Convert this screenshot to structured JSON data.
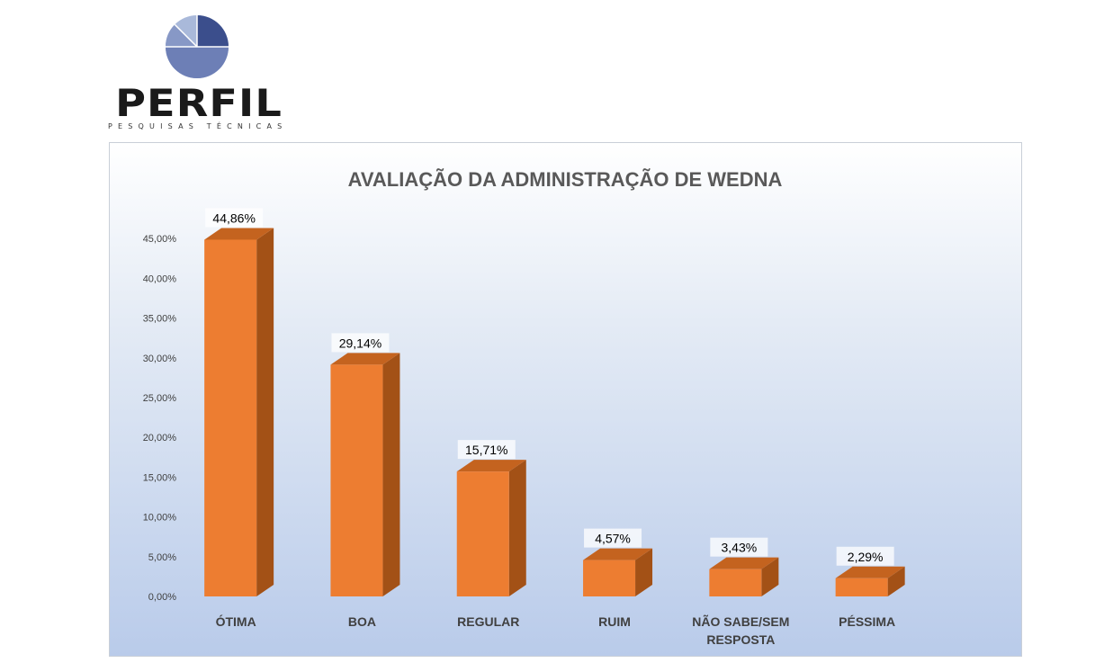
{
  "logo": {
    "name": "PERFIL",
    "tagline": "PESQUISAS TÉCNICAS"
  },
  "colors": {
    "bar_front": "#ED7D31",
    "bar_side": "#A35116",
    "bar_top": "#C4631F",
    "logo_dark": "#3B4E8C",
    "logo_mid": "#6D7FB6",
    "logo_light": "#A9B9DA"
  },
  "chart_data": {
    "type": "bar",
    "title": "AVALIAÇÃO DA ADMINISTRAÇÃO DE WEDNA",
    "categories": [
      "ÓTIMA",
      "BOA",
      "REGULAR",
      "RUIM",
      "NÃO SABE/SEM RESPOSTA",
      "PÉSSIMA"
    ],
    "values": [
      44.86,
      29.14,
      15.71,
      4.57,
      3.43,
      2.29
    ],
    "data_labels": [
      "44,86%",
      "29,14%",
      "15,71%",
      "4,57%",
      "3,43%",
      "2,29%"
    ],
    "ylim": [
      0,
      45
    ],
    "yticks": [
      0,
      5,
      10,
      15,
      20,
      25,
      30,
      35,
      40,
      45
    ],
    "ytick_labels": [
      "0,00%",
      "5,00%",
      "10,00%",
      "15,00%",
      "20,00%",
      "25,00%",
      "30,00%",
      "35,00%",
      "40,00%",
      "45,00%"
    ],
    "xlabel": "",
    "ylabel": "",
    "grid": false,
    "legend": "none",
    "style": "3d-column"
  }
}
